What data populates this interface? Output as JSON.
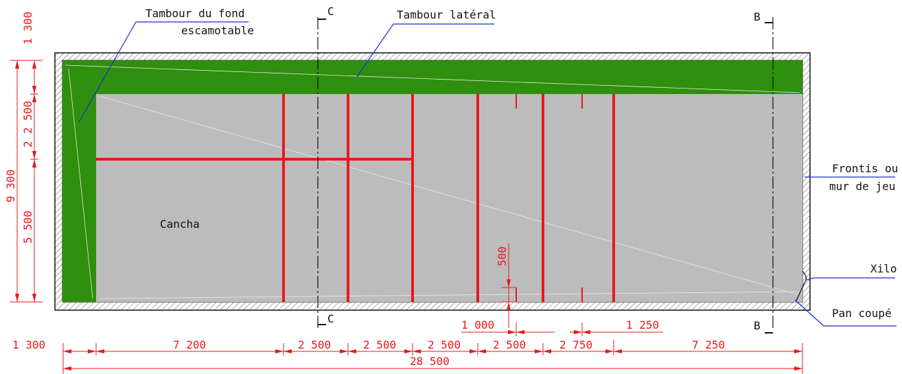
{
  "colors": {
    "court": "#bcbcbc",
    "tambour": "#2f8f0e",
    "lines": "#e8191b",
    "dimension": "#e8191b",
    "leader": "#1f2bd6",
    "outline": "#111111",
    "section": "#111111"
  },
  "labels": {
    "tambour_fond_line1": "Tambour du fond",
    "tambour_fond_line2": "escamotable",
    "tambour_lateral": "Tambour latéral",
    "frontis_line1": "Frontis ou",
    "frontis_line2": "mur de jeu",
    "xilo": "Xilo",
    "pan_coupe": "Pan coupé",
    "cancha": "Cancha"
  },
  "sections": {
    "c_top": "C",
    "c_bottom": "C",
    "b_top": "B",
    "b_bottom": "B"
  },
  "dimensions": {
    "bottom_row": [
      "1 300",
      "7 200",
      "2 500",
      "2 500",
      "2 500",
      "2 500",
      "2 750",
      "7 250"
    ],
    "total_length": "28 500",
    "mid_left": "1 000",
    "mid_right": "1 250",
    "vertical_500": "500",
    "left_outer_top": "1 300",
    "left_total": "9 300",
    "left_parts": [
      "2 500",
      "2",
      "5 500"
    ]
  }
}
